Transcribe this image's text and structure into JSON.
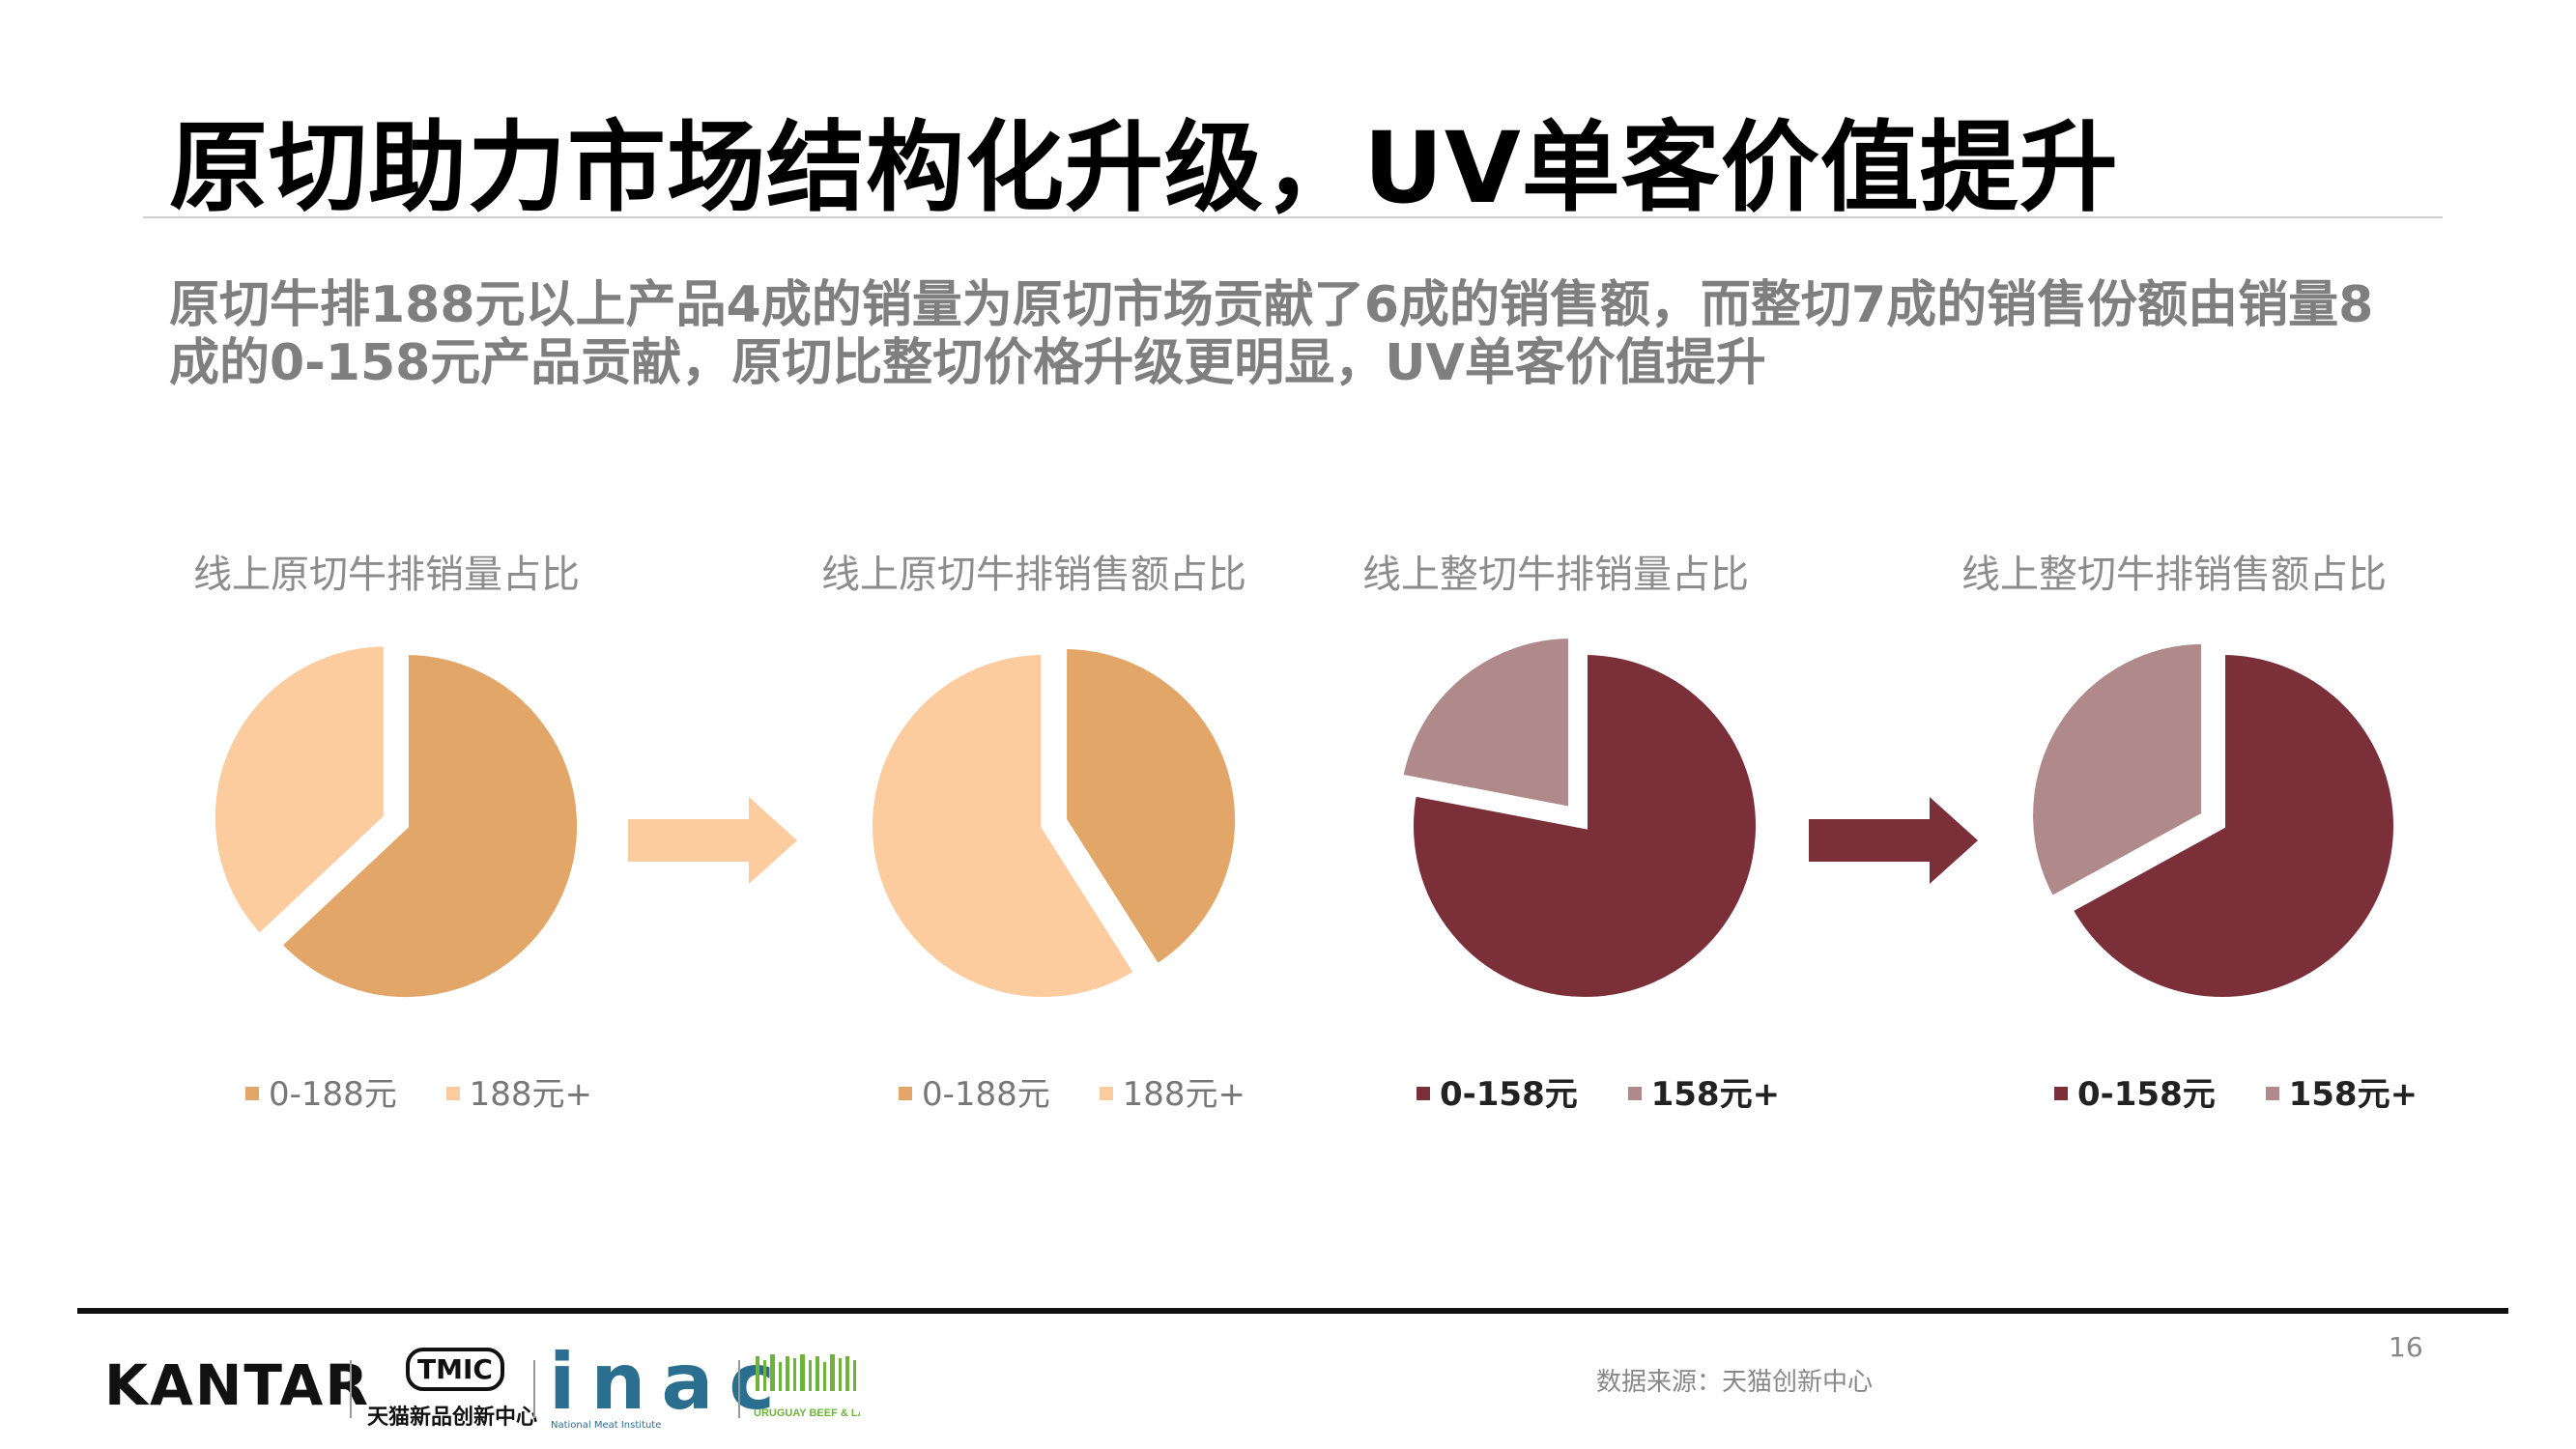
{
  "title": "原切助力市场结构化升级，UV单客价值提升",
  "subtitle": "原切牛排188元以上产品4成的销量为原切市场贡献了6成的销售额，而整切7成的销售份额由销量8成的0-158元产品贡献，原切比整切价格升级更明显，UV单客价值提升",
  "footer": {
    "page_number": "16",
    "source": "数据来源：天猫创新中心",
    "logos": {
      "kantar": "KANTAR",
      "tmic_badge": "TMIC",
      "tmic_text": "天猫新品创新中心",
      "inac": "inac",
      "inac_sub": "National Meat Institute",
      "uruguay": "URUGUAY BEEF & LAMB 乌拉圭牛羊肉"
    }
  },
  "colors": {
    "light_orange": "#fccb9e",
    "orange": "#e2a668",
    "dark_red": "#7b2f39",
    "mauve": "#b0898a"
  },
  "chart_data": [
    {
      "type": "pie",
      "title": "线上原切牛排销量占比",
      "labels": [
        "0-188元",
        "188元+"
      ],
      "values": [
        63,
        37
      ],
      "colors": [
        "#e2a668",
        "#fccb9e"
      ],
      "explode": [
        0,
        1
      ]
    },
    {
      "type": "pie",
      "title": "线上原切牛排销售额占比",
      "labels": [
        "0-188元",
        "188元+"
      ],
      "values": [
        41,
        59
      ],
      "colors": [
        "#e2a668",
        "#fccb9e"
      ],
      "explode": [
        1,
        0
      ]
    },
    {
      "type": "pie",
      "title": "线上整切牛排销量占比",
      "labels": [
        "0-158元",
        "158元+"
      ],
      "values": [
        78,
        22
      ],
      "colors": [
        "#7b2f39",
        "#b0898a"
      ],
      "explode": [
        0,
        1
      ]
    },
    {
      "type": "pie",
      "title": "线上整切牛排销售额占比",
      "labels": [
        "0-158元",
        "158元+"
      ],
      "values": [
        67,
        33
      ],
      "colors": [
        "#7b2f39",
        "#b0898a"
      ],
      "explode": [
        0,
        1
      ]
    }
  ]
}
